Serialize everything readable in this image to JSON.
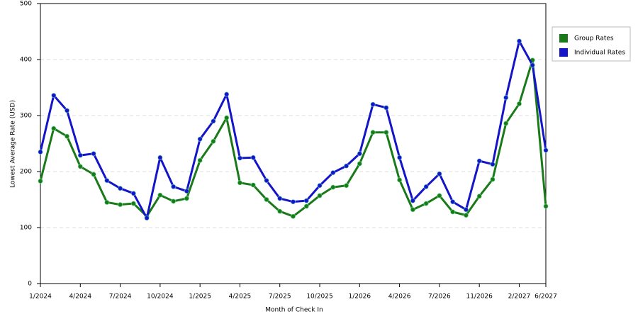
{
  "chart_data": {
    "type": "line",
    "xlabel": "Month of Check In",
    "ylabel": "Lowest Average Rate (USD)",
    "categories": [
      "1/2024",
      null,
      null,
      "4/2024",
      null,
      null,
      "7/2024",
      null,
      null,
      "10/2024",
      null,
      null,
      "1/2025",
      null,
      null,
      "4/2025",
      null,
      null,
      "7/2025",
      null,
      null,
      "10/2025",
      null,
      null,
      "1/2026",
      null,
      null,
      "4/2026",
      null,
      null,
      "7/2026",
      null,
      null,
      "11/2026",
      null,
      null,
      "2/2027",
      null,
      "6/2027"
    ],
    "series": [
      {
        "name": "Group Rates",
        "color": "#1a7a1a",
        "values": [
          183,
          277,
          263,
          209,
          195,
          145,
          141,
          143,
          120,
          158,
          147,
          152,
          220,
          254,
          296,
          180,
          176,
          150,
          129,
          120,
          138,
          157,
          172,
          175,
          214,
          270,
          270,
          185,
          132,
          143,
          157,
          128,
          122,
          156,
          186,
          286,
          321,
          399,
          138
        ]
      },
      {
        "name": "Individual Rates",
        "color": "#1414c8",
        "values": [
          235,
          336,
          309,
          229,
          232,
          184,
          170,
          161,
          117,
          225,
          173,
          165,
          258,
          290,
          338,
          224,
          225,
          184,
          152,
          146,
          148,
          175,
          198,
          210,
          232,
          320,
          314,
          225,
          148,
          173,
          196,
          146,
          132,
          219,
          213,
          332,
          433,
          390,
          238
        ]
      }
    ],
    "ylim": [
      0,
      500
    ],
    "yticks": [
      0,
      100,
      200,
      300,
      400,
      500
    ],
    "grid": true,
    "legend": "right"
  }
}
